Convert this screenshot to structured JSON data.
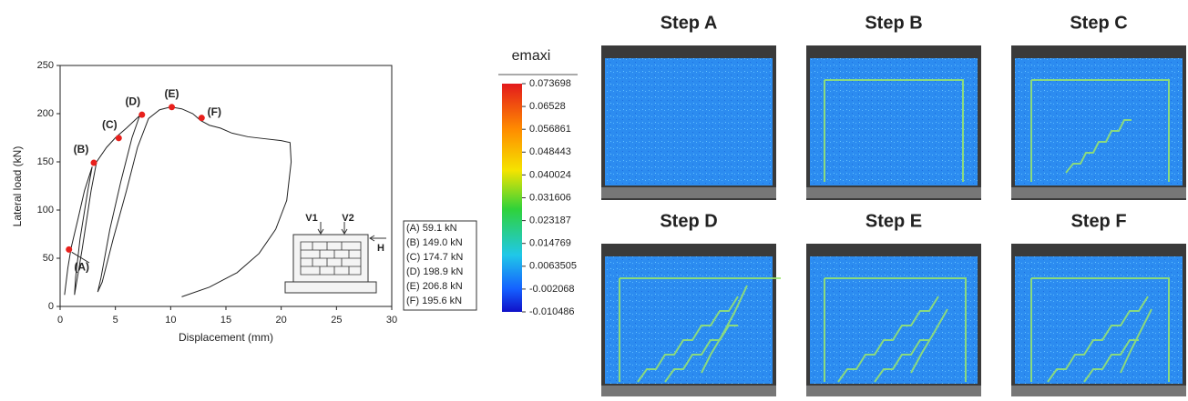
{
  "chart_data": {
    "type": "line",
    "x_label": "Displacement (mm)",
    "y_label": "Lateral load (kN)",
    "xlim": [
      0,
      30
    ],
    "xticks": [
      0,
      5,
      10,
      15,
      20,
      25,
      30
    ],
    "ylim": [
      0,
      250
    ],
    "yticks": [
      0,
      50,
      100,
      150,
      200,
      250
    ],
    "series": [
      {
        "color": "#222222",
        "x": [
          0.4,
          0.7,
          1.0,
          1.6,
          2.2,
          2.9,
          2.5,
          1.8,
          1.4,
          1.3,
          2.0,
          2.8,
          3.3,
          4.2,
          5.0,
          6.0,
          7.2,
          6.5,
          5.5,
          4.5,
          3.7,
          3.4,
          3.8,
          4.8,
          6.0,
          7.0,
          8.0,
          9.0,
          10.0,
          11.0,
          12.0,
          12.7,
          13.5,
          14.5,
          15.5,
          17.0,
          18.5,
          20.0,
          20.8,
          20.9,
          20.5,
          19.5,
          18.0,
          16.0,
          13.5,
          11.0
        ],
        "values": [
          12,
          40,
          61,
          90,
          120,
          145,
          120,
          70,
          30,
          12,
          60,
          120,
          150,
          165,
          175,
          185,
          198,
          175,
          130,
          80,
          30,
          15,
          25,
          70,
          120,
          165,
          195,
          204,
          207,
          205,
          200,
          193,
          188,
          185,
          180,
          176,
          174,
          172,
          170,
          150,
          110,
          80,
          55,
          35,
          20,
          10
        ]
      },
      {
        "color": "#e8201c",
        "x": [
          0.8,
          3.05,
          5.3,
          7.4,
          10.1,
          12.8
        ],
        "values": [
          59.1,
          149.0,
          174.7,
          198.9,
          206.8,
          195.6
        ],
        "point_labels": [
          "(A)",
          "(B)",
          "(C)",
          "(D)",
          "(E)",
          "(F)"
        ],
        "value_labels": [
          "(A) 59.1 kN",
          "(B) 149.0 kN",
          "(C) 174.7 kN",
          "(D) 198.9 kN",
          "(E)  206.8 kN",
          "(F) 195.6 kN"
        ]
      }
    ]
  },
  "diagram": {
    "labels": [
      "V1",
      "V2",
      "H"
    ]
  },
  "colorbar": {
    "title": "emaxi",
    "lim": [
      -0.010486,
      0.073698
    ],
    "ticks": [
      0.073698,
      0.06528,
      0.056861,
      0.048443,
      0.040024,
      0.031606,
      0.023187,
      0.014769,
      0.0063505,
      -0.002068,
      -0.010486
    ]
  },
  "panels": [
    {
      "title": "Step A"
    },
    {
      "title": "Step B"
    },
    {
      "title": "Step C"
    },
    {
      "title": "Step D"
    },
    {
      "title": "Step E"
    },
    {
      "title": "Step F"
    }
  ]
}
